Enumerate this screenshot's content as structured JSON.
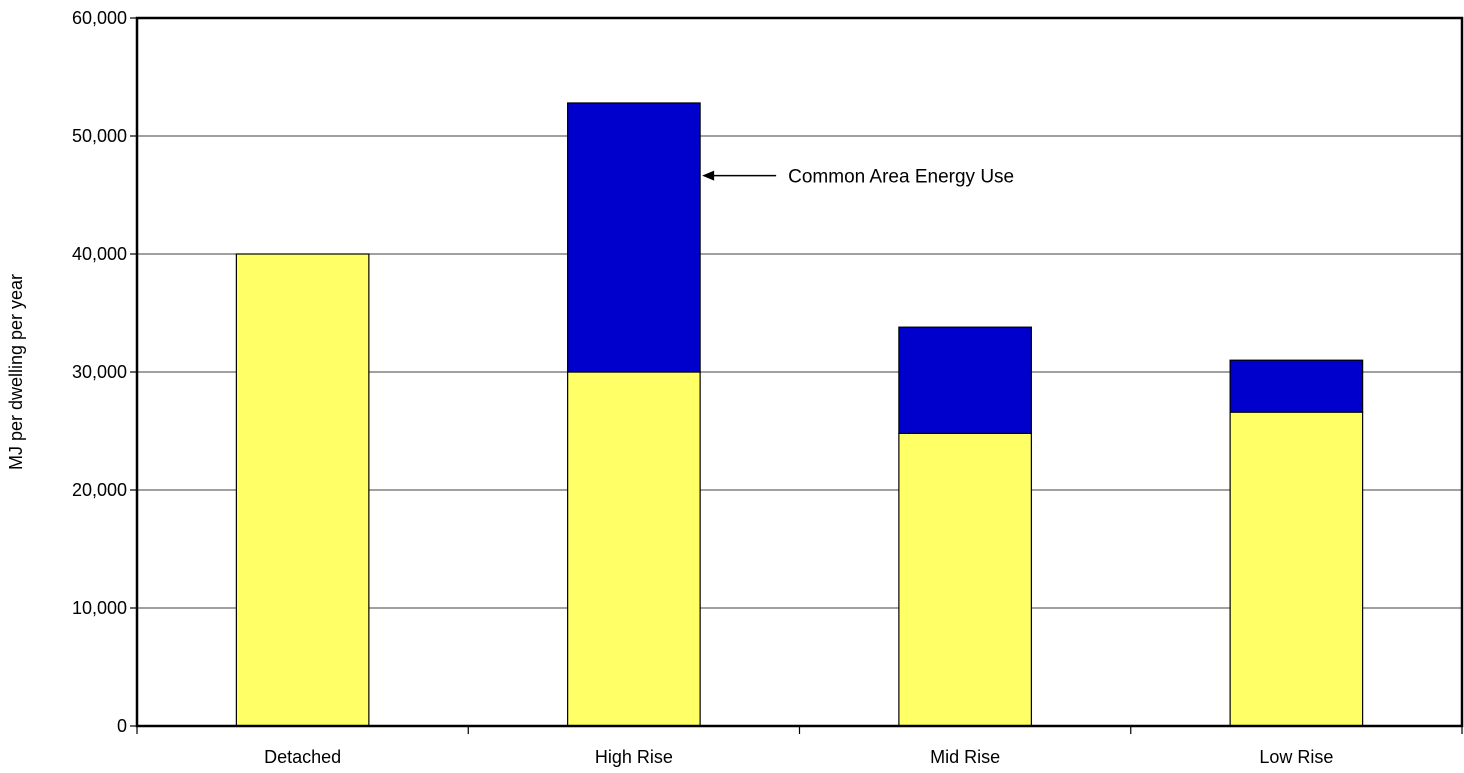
{
  "chart_data": {
    "type": "bar",
    "stacked": true,
    "categories": [
      "Detached",
      "High Rise",
      "Mid Rise",
      "Low Rise"
    ],
    "series": [
      {
        "values": [
          40000,
          30000,
          24800,
          26600
        ],
        "color": "#FFFF66"
      },
      {
        "name": "Common Area Energy Use",
        "values": [
          0,
          22800,
          9000,
          4400
        ],
        "color": "#0000CC"
      }
    ],
    "ylabel": "MJ per dwelling per year",
    "xlabel": "",
    "ylim": [
      0,
      60000
    ],
    "yticks": [
      0,
      10000,
      20000,
      30000,
      40000,
      50000,
      60000
    ],
    "ytick_labels": [
      "0",
      "10,000",
      "20,000",
      "30,000",
      "40,000",
      "50,000",
      "60,000"
    ],
    "grid": true,
    "annotation": {
      "text": "Common Area Energy Use",
      "points_to": "High Rise"
    }
  }
}
